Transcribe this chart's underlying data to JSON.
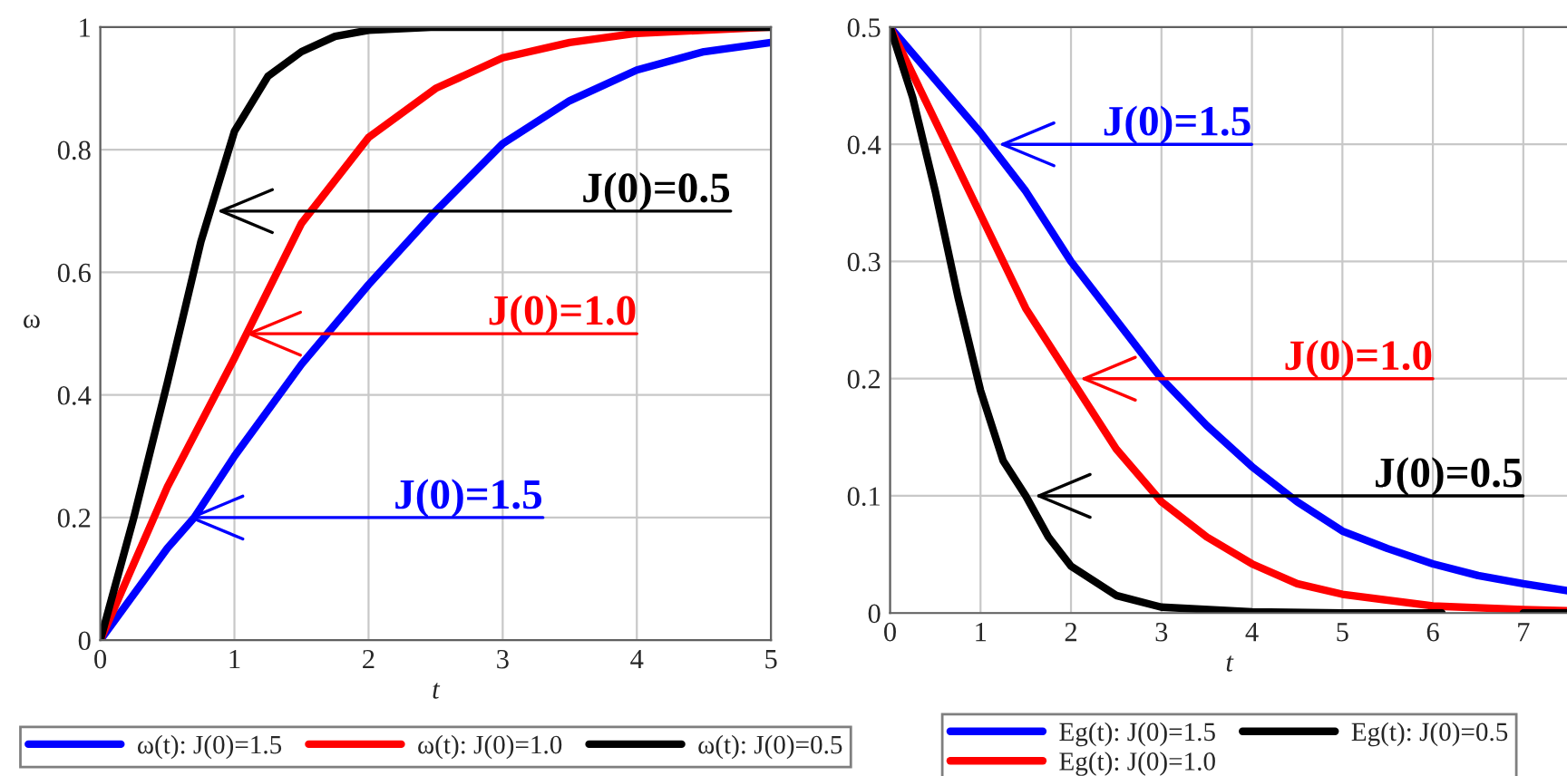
{
  "chart_data": [
    {
      "type": "line",
      "xlabel": "t",
      "ylabel": "ω",
      "xlim": [
        0,
        5
      ],
      "ylim": [
        0,
        1
      ],
      "xticks": [
        0,
        1,
        2,
        3,
        4,
        5
      ],
      "yticks": [
        0,
        0.2,
        0.4,
        0.6,
        0.8,
        1
      ],
      "grid": true,
      "legend": "bottom",
      "line_style": "solid",
      "series": [
        {
          "name": "ω(t): J(0)=1.5",
          "color": "#0000ff",
          "x": [
            0,
            0.5,
            0.7,
            1,
            1.5,
            2,
            2.5,
            3,
            3.5,
            4,
            4.5,
            5
          ],
          "values": [
            0,
            0.15,
            0.2,
            0.3,
            0.45,
            0.58,
            0.7,
            0.81,
            0.88,
            0.93,
            0.96,
            0.975
          ]
        },
        {
          "name": "ω(t): J(0)=1.0",
          "color": "#ff0000",
          "x": [
            0,
            0.5,
            1,
            1.5,
            2,
            2.5,
            3,
            3.5,
            4,
            4.5,
            5
          ],
          "values": [
            0,
            0.25,
            0.46,
            0.68,
            0.82,
            0.9,
            0.95,
            0.975,
            0.99,
            0.995,
            1
          ]
        },
        {
          "name": "ω(t): J(0)=0.5",
          "color": "#000000",
          "x": [
            0,
            0.25,
            0.5,
            0.75,
            1,
            1.25,
            1.5,
            1.75,
            2,
            2.5,
            3,
            4,
            5
          ],
          "values": [
            0,
            0.2,
            0.42,
            0.65,
            0.83,
            0.92,
            0.96,
            0.985,
            0.995,
            1,
            1,
            1,
            1
          ]
        }
      ],
      "annotations": [
        {
          "text": "J(0)=0.5",
          "x": 0.87,
          "y": 0.7
        },
        {
          "text": "J(0)=1.0",
          "x": 1.08,
          "y": 0.5
        },
        {
          "text": "J(0)=1.5",
          "x": 0.65,
          "y": 0.2
        }
      ]
    },
    {
      "type": "line",
      "xlabel": "t",
      "xlim": [
        0,
        7.5
      ],
      "ylim": [
        0,
        0.5
      ],
      "xticks": [
        0,
        1,
        2,
        3,
        4,
        5,
        6,
        7
      ],
      "yticks": [
        0,
        0.1,
        0.2,
        0.3,
        0.4,
        0.5
      ],
      "grid": true,
      "legend": "bottom",
      "line_style": "solid",
      "series": [
        {
          "name": "Eg(t): J(0)=1.5",
          "color": "#0000ff",
          "x": [
            0,
            1,
            1.5,
            2,
            2.5,
            3,
            3.5,
            4,
            4.5,
            5,
            5.5,
            6,
            6.5,
            7,
            7.5
          ],
          "values": [
            0.5,
            0.41,
            0.36,
            0.3,
            0.25,
            0.2,
            0.16,
            0.125,
            0.095,
            0.07,
            0.055,
            0.042,
            0.032,
            0.025,
            0.019
          ]
        },
        {
          "name": "Eg(t): J(0)=1.0",
          "color": "#ff0000",
          "x": [
            0,
            0.5,
            1,
            1.5,
            2,
            2.5,
            3,
            3.5,
            4,
            4.5,
            5,
            6,
            7,
            7.5
          ],
          "values": [
            0.5,
            0.42,
            0.34,
            0.26,
            0.2,
            0.14,
            0.095,
            0.065,
            0.042,
            0.025,
            0.016,
            0.006,
            0.003,
            0.002
          ]
        },
        {
          "name": "Eg(t): J(0)=0.5",
          "color": "#000000",
          "x": [
            0,
            0.25,
            0.5,
            0.75,
            1,
            1.25,
            1.5,
            1.75,
            2,
            2.5,
            3,
            4,
            5,
            6.1,
            6.5,
            7,
            7.5
          ],
          "values": [
            0.5,
            0.44,
            0.36,
            0.27,
            0.19,
            0.13,
            0.1,
            0.065,
            0.04,
            0.015,
            0.005,
            0.001,
            0,
            0,
            null,
            0,
            0
          ]
        }
      ],
      "annotations": [
        {
          "text": "J(0)=0.5",
          "x": 1.6,
          "y": 0.1
        },
        {
          "text": "J(0)=1.0",
          "x": 2.1,
          "y": 0.2
        },
        {
          "text": "J(0)=1.5",
          "x": 1.2,
          "y": 0.4
        }
      ]
    }
  ]
}
